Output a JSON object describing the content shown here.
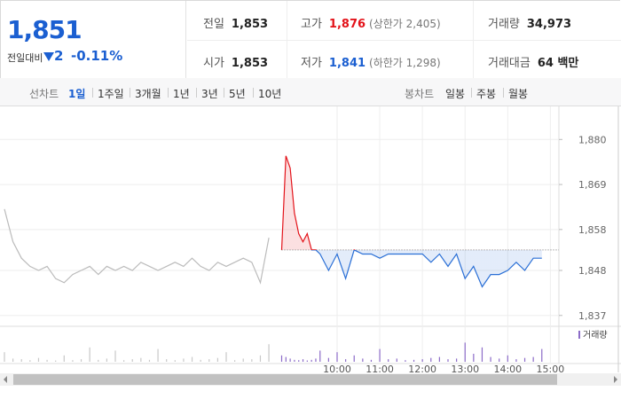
{
  "quote": {
    "price": "1,851",
    "change_label": "전일대비",
    "change": "2",
    "change_rate": "-0.11%"
  },
  "stats": [
    {
      "label": "전일",
      "value": "1,853"
    },
    {
      "label": "고가",
      "value": "1,876",
      "note": "(상한가 2,405)"
    },
    {
      "label": "거래량",
      "value": "34,973"
    },
    {
      "label": "시가",
      "value": "1,853"
    },
    {
      "label": "저가",
      "value": "1,841",
      "note": "(하한가 1,298)"
    },
    {
      "label": "거래대금",
      "value": "64 백만"
    }
  ],
  "tabs": {
    "line_label": "선차트",
    "periods": [
      "1일",
      "1주일",
      "3개월",
      "1년",
      "3년",
      "5년",
      "10년"
    ],
    "selected": 0,
    "candle_label": "봉차트",
    "candles": [
      "일봉",
      "주봉",
      "월봉"
    ]
  },
  "chart_data": {
    "type": "line",
    "xlim": [
      0,
      130
    ],
    "ylim": [
      1835,
      1887
    ],
    "yticks": [
      {
        "value": 1880,
        "label": "1,880"
      },
      {
        "value": 1869,
        "label": "1,869"
      },
      {
        "value": 1858,
        "label": "1,858"
      },
      {
        "value": 1848,
        "label": "1,848"
      },
      {
        "value": 1837,
        "label": "1,837"
      }
    ],
    "xticks": [
      {
        "value": 78,
        "label": "10:00"
      },
      {
        "value": 88,
        "label": "11:00"
      },
      {
        "value": 98,
        "label": "12:00"
      },
      {
        "value": 108,
        "label": "13:00"
      },
      {
        "value": 118,
        "label": "14:00"
      },
      {
        "value": 128,
        "label": "15:00"
      }
    ],
    "grid": true,
    "baseline": 1853,
    "up_color": "#e3131a",
    "down_color": "#2a6fd6",
    "volume_name": "거래량",
    "volume_color": "#8c6cc8",
    "volume_lim": [
      0,
      100
    ],
    "series": [
      {
        "color": "#bbbbbb",
        "volume_color": "#c8c8c8",
        "x": [
          0,
          2,
          4,
          6,
          8,
          10,
          12,
          14,
          16,
          18,
          20,
          22,
          24,
          26,
          28,
          30,
          32,
          34,
          36,
          38,
          40,
          42,
          44,
          46,
          48,
          50,
          52,
          54,
          56,
          58,
          60,
          62
        ],
        "values": [
          1863,
          1855,
          1851,
          1849,
          1848,
          1849,
          1846,
          1845,
          1847,
          1848,
          1849,
          1847,
          1849,
          1848,
          1849,
          1848,
          1850,
          1849,
          1848,
          1849,
          1850,
          1849,
          1851,
          1849,
          1848,
          1850,
          1849,
          1850,
          1851,
          1850,
          1845,
          1856
        ],
        "volume": [
          30,
          10,
          8,
          5,
          12,
          6,
          4,
          20,
          5,
          8,
          45,
          6,
          10,
          35,
          5,
          8,
          12,
          6,
          40,
          8,
          5,
          10,
          15,
          6,
          8,
          12,
          30,
          5,
          10,
          8,
          20,
          55
        ]
      },
      {
        "x": [
          65,
          66,
          67,
          68,
          69,
          70,
          71,
          72,
          73,
          74,
          76,
          78,
          80,
          82,
          84,
          86,
          88,
          90,
          92,
          94,
          96,
          98,
          100,
          102,
          104,
          106,
          108,
          110,
          112,
          114,
          116,
          118,
          120,
          122,
          124,
          126
        ],
        "values": [
          1853,
          1876,
          1873,
          1862,
          1857,
          1855,
          1857,
          1853,
          1853,
          1852,
          1848,
          1852,
          1846,
          1853,
          1852,
          1852,
          1851,
          1852,
          1852,
          1852,
          1852,
          1852,
          1850,
          1852,
          1849,
          1852,
          1846,
          1849,
          1844,
          1847,
          1847,
          1848,
          1850,
          1848,
          1851,
          1851
        ],
        "volume": [
          20,
          15,
          10,
          6,
          5,
          8,
          4,
          6,
          10,
          35,
          12,
          30,
          8,
          20,
          10,
          6,
          40,
          8,
          10,
          5,
          6,
          8,
          12,
          15,
          8,
          10,
          60,
          25,
          45,
          15,
          10,
          20,
          8,
          12,
          15,
          40
        ]
      }
    ]
  }
}
